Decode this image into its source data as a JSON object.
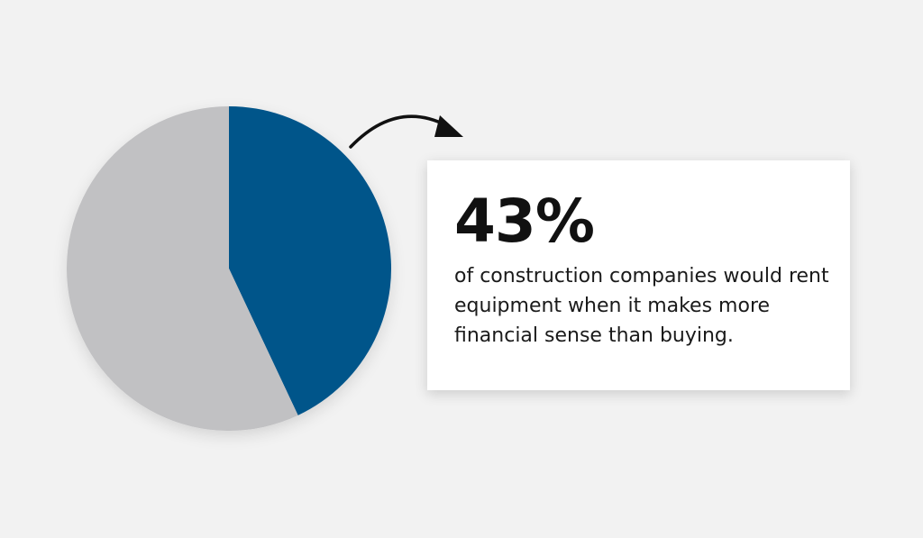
{
  "chart_data": {
    "type": "pie",
    "title": "",
    "slices": [
      {
        "label": "",
        "value": 43,
        "color": "#00548a"
      },
      {
        "label": "",
        "value": 57,
        "color": "#c1c1c3"
      }
    ]
  },
  "callout": {
    "value": "43%",
    "description": "of construction companies would rent equipment when it makes more financial sense than buying."
  },
  "colors": {
    "accent": "#00548a",
    "remainder": "#c1c1c3",
    "background": "#f2f2f2",
    "card": "#ffffff",
    "text": "#111111"
  },
  "icons": {
    "arrow": "curved-arrow-icon"
  }
}
